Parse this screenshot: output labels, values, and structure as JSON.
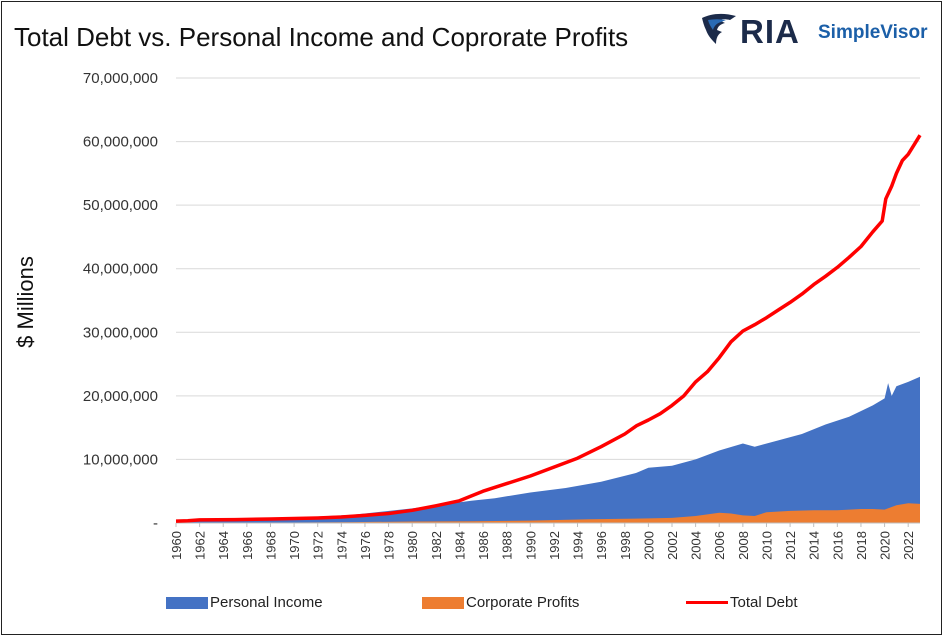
{
  "header": {
    "title": "Total Debt vs. Personal Income and Coprorate Profits",
    "logo_main": "RIA",
    "logo_sub": "SimpleVisor"
  },
  "chart_data": {
    "type": "area",
    "title": "Total Debt vs. Personal Income and Coprorate Profits",
    "ylabel": "$ Millions",
    "xlabel": "",
    "ylim": [
      0,
      70000000
    ],
    "xlim": [
      1960,
      2023
    ],
    "y_ticks": [
      0,
      10000000,
      20000000,
      30000000,
      40000000,
      50000000,
      60000000,
      70000000
    ],
    "y_tick_labels": [
      "-",
      "10,000,000",
      "20,000,000",
      "30,000,000",
      "40,000,000",
      "50,000,000",
      "60,000,000",
      "70,000,000"
    ],
    "x_tick_labels": [
      "1960",
      "1962",
      "1964",
      "1966",
      "1968",
      "1970",
      "1972",
      "1974",
      "1976",
      "1978",
      "1980",
      "1982",
      "1984",
      "1986",
      "1988",
      "1990",
      "1992",
      "1994",
      "1996",
      "1998",
      "2000",
      "2002",
      "2004",
      "2006",
      "2008",
      "2010",
      "2012",
      "2014",
      "2016",
      "2018",
      "2020",
      "2022"
    ],
    "grid": "horizontal",
    "legend_position": "bottom",
    "series": [
      {
        "name": "Personal Income",
        "kind": "area",
        "color": "#4472c4",
        "points": [
          [
            1960,
            410000
          ],
          [
            1965,
            540000
          ],
          [
            1970,
            830000
          ],
          [
            1975,
            1300000
          ],
          [
            1980,
            2300000
          ],
          [
            1983,
            3000000
          ],
          [
            1985,
            3500000
          ],
          [
            1987,
            3900000
          ],
          [
            1990,
            4800000
          ],
          [
            1993,
            5500000
          ],
          [
            1996,
            6500000
          ],
          [
            1999,
            7900000
          ],
          [
            2000,
            8700000
          ],
          [
            2002,
            9000000
          ],
          [
            2004,
            10000000
          ],
          [
            2006,
            11400000
          ],
          [
            2008,
            12500000
          ],
          [
            2009,
            12000000
          ],
          [
            2011,
            13000000
          ],
          [
            2013,
            14000000
          ],
          [
            2015,
            15500000
          ],
          [
            2017,
            16700000
          ],
          [
            2019,
            18500000
          ],
          [
            2020,
            19600000
          ],
          [
            2020.3,
            22000000
          ],
          [
            2020.6,
            20000000
          ],
          [
            2021,
            21500000
          ],
          [
            2022,
            22200000
          ],
          [
            2023,
            23000000
          ]
        ]
      },
      {
        "name": "Corporate Profits",
        "kind": "area",
        "color": "#ed7d31",
        "points": [
          [
            1960,
            55000
          ],
          [
            1965,
            80000
          ],
          [
            1970,
            80000
          ],
          [
            1975,
            140000
          ],
          [
            1980,
            230000
          ],
          [
            1985,
            260000
          ],
          [
            1990,
            380000
          ],
          [
            1995,
            580000
          ],
          [
            2000,
            730000
          ],
          [
            2002,
            800000
          ],
          [
            2004,
            1100000
          ],
          [
            2006,
            1600000
          ],
          [
            2007,
            1500000
          ],
          [
            2008,
            1200000
          ],
          [
            2009,
            1100000
          ],
          [
            2010,
            1700000
          ],
          [
            2012,
            1900000
          ],
          [
            2014,
            2000000
          ],
          [
            2016,
            2000000
          ],
          [
            2018,
            2200000
          ],
          [
            2019,
            2200000
          ],
          [
            2020,
            2100000
          ],
          [
            2021,
            2800000
          ],
          [
            2022,
            3100000
          ],
          [
            2023,
            3000000
          ]
        ]
      },
      {
        "name": "Total Debt",
        "kind": "line",
        "color": "#ff0000",
        "points": [
          [
            1960,
            300000
          ],
          [
            1961,
            350000
          ],
          [
            1962,
            480000
          ],
          [
            1965,
            530000
          ],
          [
            1968,
            630000
          ],
          [
            1970,
            700000
          ],
          [
            1972,
            790000
          ],
          [
            1974,
            950000
          ],
          [
            1976,
            1200000
          ],
          [
            1978,
            1500000
          ],
          [
            1980,
            2000000
          ],
          [
            1982,
            2700000
          ],
          [
            1984,
            3500000
          ],
          [
            1986,
            5000000
          ],
          [
            1988,
            6200000
          ],
          [
            1990,
            7400000
          ],
          [
            1992,
            8800000
          ],
          [
            1994,
            10200000
          ],
          [
            1996,
            12000000
          ],
          [
            1998,
            14000000
          ],
          [
            1999,
            15300000
          ],
          [
            2000,
            16200000
          ],
          [
            2001,
            17200000
          ],
          [
            2002,
            18500000
          ],
          [
            2003,
            20000000
          ],
          [
            2004,
            22200000
          ],
          [
            2005,
            23800000
          ],
          [
            2006,
            26000000
          ],
          [
            2007,
            28500000
          ],
          [
            2008,
            30200000
          ],
          [
            2009,
            31200000
          ],
          [
            2010,
            32300000
          ],
          [
            2011,
            33500000
          ],
          [
            2012,
            34700000
          ],
          [
            2013,
            36000000
          ],
          [
            2014,
            37500000
          ],
          [
            2015,
            38800000
          ],
          [
            2016,
            40200000
          ],
          [
            2017,
            41800000
          ],
          [
            2018,
            43500000
          ],
          [
            2019,
            45800000
          ],
          [
            2019.8,
            47500000
          ],
          [
            2020.1,
            51000000
          ],
          [
            2020.6,
            53000000
          ],
          [
            2021,
            55000000
          ],
          [
            2021.5,
            57000000
          ],
          [
            2022,
            58000000
          ],
          [
            2022.5,
            59500000
          ],
          [
            2023,
            61000000
          ]
        ]
      }
    ]
  }
}
